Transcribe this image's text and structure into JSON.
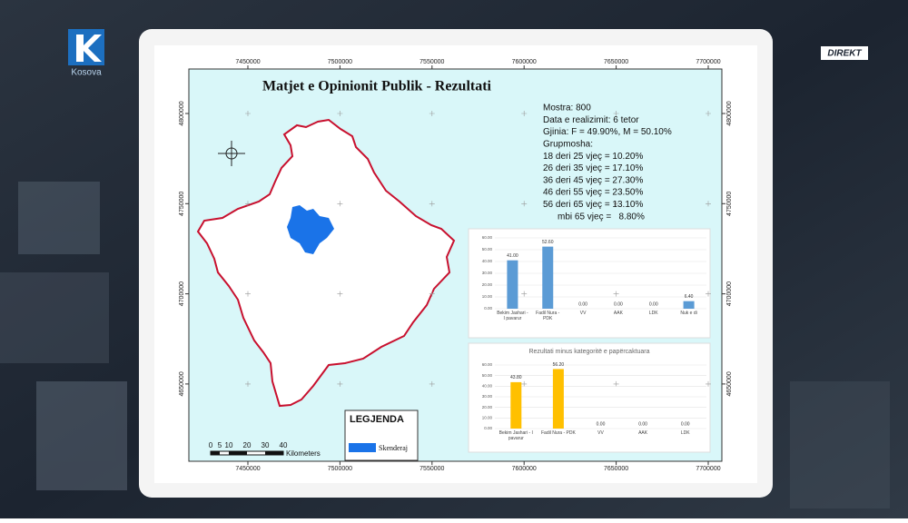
{
  "broadcaster": {
    "logo": "Kosova",
    "live": "DIREKT"
  },
  "map": {
    "title": "Matjet e Opinionit Publik - Rezultati",
    "xticks": [
      7450000,
      7500000,
      7550000,
      7600000,
      7650000,
      7700000
    ],
    "yticks": [
      4800000,
      4750000,
      4700000,
      4650000
    ],
    "info": [
      "Mostra: 800",
      "Data e realizimit: 6 tetor",
      "Gjinia: F = 49.90%, M = 50.10%",
      "Grupmosha:",
      "18 deri 25 vjeç = 10.20%",
      "26 deri 35 vjeç = 17.10%",
      "36 deri 45 vjeç = 27.30%",
      "46 deri 55 vjeç = 23.50%",
      "56 deri 65 vjeç = 13.10%",
      "mbi 65 vjeç =   8.80%"
    ],
    "legend_title": "LEGJENDA",
    "legend_item": "Skenderaj",
    "scale_labels": [
      0,
      5,
      10,
      20,
      30,
      40
    ],
    "scale_unit": "Kilometers"
  },
  "chart_data": [
    {
      "type": "bar",
      "color": "#5b9bd5",
      "categories": [
        "Bekim Jashari - I pavarur",
        "Fadil Nura - PDK",
        "VV",
        "AAK",
        "LDK",
        "Nuk e di"
      ],
      "values": [
        41,
        52.6,
        0,
        0,
        0,
        6.4
      ],
      "value_labels": [
        "41.00",
        "52.60",
        "0.00",
        "0.00",
        "0.00",
        "6.40"
      ],
      "ylim": [
        0,
        60
      ],
      "yticks": [
        {
          "value": 0,
          "label": "0.00"
        },
        {
          "value": 10,
          "label": "10.00"
        },
        {
          "value": 20,
          "label": "20.00"
        },
        {
          "value": 30,
          "label": "30.00"
        },
        {
          "value": 40,
          "label": "40.00"
        },
        {
          "value": 50,
          "label": "50.00"
        },
        {
          "value": 60,
          "label": "60.00"
        }
      ],
      "grid": true
    },
    {
      "type": "bar",
      "color": "#ffc000",
      "title": "Rezultati minus kategoritë e papërcaktuara",
      "categories": [
        "Bekim Jashari - I pavarur",
        "Fadil Nura - PDK",
        "VV",
        "AAK",
        "LDK"
      ],
      "values": [
        43.8,
        56.2,
        0,
        0,
        0
      ],
      "value_labels": [
        "43.80",
        "56.20",
        "0.00",
        "0.00",
        "0.00"
      ],
      "ylim": [
        0,
        60
      ],
      "yticks": [
        {
          "value": 0,
          "label": "0.00"
        },
        {
          "value": 10,
          "label": "10.00"
        },
        {
          "value": 20,
          "label": "20.00"
        },
        {
          "value": 30,
          "label": "30.00"
        },
        {
          "value": 40,
          "label": "40.00"
        },
        {
          "value": 50,
          "label": "50.00"
        },
        {
          "value": 60,
          "label": "60.00"
        }
      ],
      "grid": true
    }
  ]
}
